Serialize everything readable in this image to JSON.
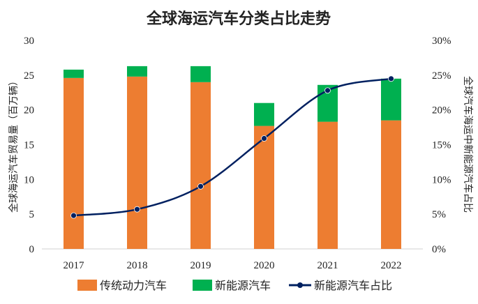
{
  "chart_data": {
    "type": "bar",
    "title": "全球海运汽车分类占比走势",
    "categories": [
      "2017",
      "2018",
      "2019",
      "2020",
      "2021",
      "2022"
    ],
    "series": [
      {
        "name": "传统动力汽车",
        "type": "bar",
        "axis": "left",
        "color": "#ED7D31",
        "values": [
          24.6,
          24.8,
          24.0,
          17.7,
          18.3,
          18.5
        ]
      },
      {
        "name": "新能源汽车",
        "type": "bar",
        "axis": "left",
        "color": "#00B050",
        "values": [
          1.2,
          1.5,
          2.3,
          3.3,
          5.3,
          6.0
        ]
      },
      {
        "name": "新能源汽车占比",
        "type": "line",
        "axis": "right",
        "color": "#002060",
        "values": [
          0.048,
          0.057,
          0.09,
          0.159,
          0.228,
          0.245
        ]
      }
    ],
    "stacked": true,
    "ylabel": "全球海运汽车贸易量（百万辆）",
    "y2label": "全球汽车海运中新能源汽车占比",
    "ylim": [
      0,
      30
    ],
    "y2lim": [
      0,
      0.3
    ],
    "yticks": [
      "0",
      "5",
      "10",
      "15",
      "20",
      "25",
      "30"
    ],
    "y2ticks": [
      "0%",
      "5%",
      "10%",
      "15%",
      "20%",
      "25%",
      "30%"
    ],
    "grid": false,
    "legend_position": "bottom"
  }
}
